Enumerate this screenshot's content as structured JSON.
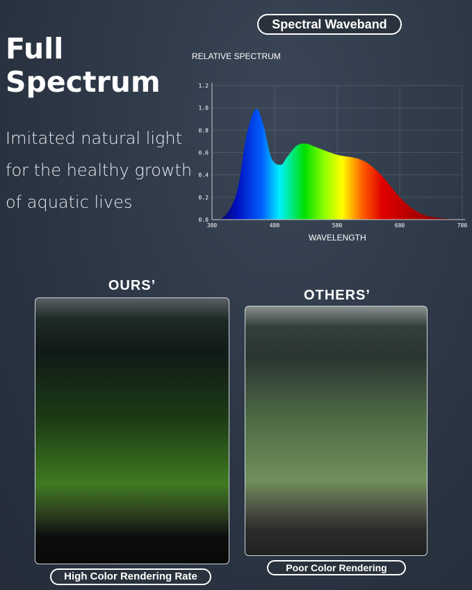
{
  "headline": {
    "title_line1": "Full",
    "title_line2": "Spectrum",
    "sub_line1": "Imitated natural light",
    "sub_line2": "for the healthy growth",
    "sub_line3": "of aquatic lives"
  },
  "spectral_label": "Spectral Waveband",
  "chart_data": {
    "type": "area",
    "title": "",
    "ylabel": "RELATIVE SPECTRUM",
    "xlabel": "WAVELENGTH",
    "xlim": [
      380,
      780
    ],
    "ylim": [
      0,
      1.2
    ],
    "x_ticks": [
      "380",
      "480",
      "580",
      "680",
      "780"
    ],
    "y_ticks": [
      "0.0",
      "0.2",
      "0.4",
      "0.6",
      "0.8",
      "1.0",
      "1.2"
    ],
    "grid": true,
    "x": [
      380,
      400,
      420,
      435,
      450,
      462,
      475,
      490,
      500,
      515,
      530,
      550,
      580,
      610,
      630,
      650,
      665,
      680,
      700,
      720,
      750,
      780
    ],
    "y": [
      0,
      0.03,
      0.25,
      0.75,
      0.99,
      0.85,
      0.55,
      0.49,
      0.56,
      0.66,
      0.68,
      0.64,
      0.58,
      0.55,
      0.5,
      0.4,
      0.3,
      0.2,
      0.1,
      0.04,
      0.01,
      0
    ],
    "fill": "visible-spectrum gradient"
  },
  "comparison": {
    "ours_label": "OURS’",
    "others_label": "OTHERS’",
    "ours_caption": "High Color Rendering Rate",
    "others_caption": "Poor Color Rendering"
  }
}
